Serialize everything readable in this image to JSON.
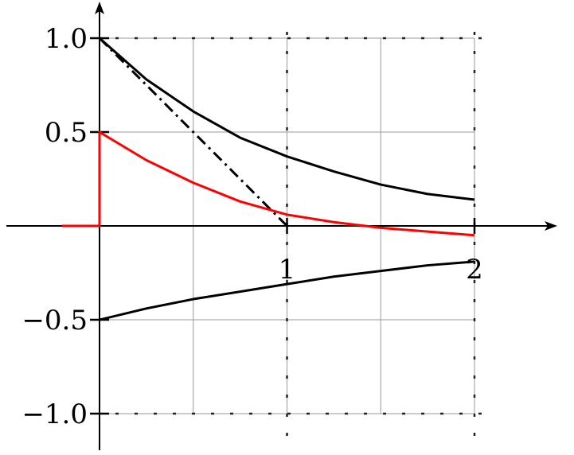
{
  "chart_data": {
    "type": "line",
    "title": "",
    "xlabel": "",
    "ylabel": "",
    "xlim": [
      -0.5,
      2.4
    ],
    "ylim": [
      -1.2,
      1.2
    ],
    "grid": true,
    "x_ticks": [
      {
        "value": 1,
        "label": "1"
      },
      {
        "value": 2,
        "label": "2"
      }
    ],
    "y_ticks": [
      {
        "value": 1.0,
        "label": "1.0"
      },
      {
        "value": 0.5,
        "label": "0.5"
      },
      {
        "value": -0.5,
        "label": "−0.5"
      },
      {
        "value": -1.0,
        "label": "−1.0"
      }
    ],
    "series": [
      {
        "name": "upper-envelope",
        "color": "#000000",
        "style": "solid",
        "x": [
          0,
          0.25,
          0.5,
          0.75,
          1.0,
          1.25,
          1.5,
          1.75,
          2.0
        ],
        "y": [
          1.0,
          0.78,
          0.61,
          0.47,
          0.37,
          0.29,
          0.22,
          0.17,
          0.14
        ]
      },
      {
        "name": "lower-envelope",
        "color": "#000000",
        "style": "solid",
        "x": [
          0,
          0.25,
          0.5,
          0.75,
          1.0,
          1.25,
          1.5,
          1.75,
          2.0
        ],
        "y": [
          -0.5,
          -0.44,
          -0.39,
          -0.35,
          -0.31,
          -0.27,
          -0.24,
          -0.21,
          -0.19
        ]
      },
      {
        "name": "tangent-line",
        "color": "#000000",
        "style": "dashdot",
        "x": [
          0,
          1.0
        ],
        "y": [
          1.0,
          0.0
        ]
      },
      {
        "name": "red-response",
        "color": "#ff0000",
        "style": "solid",
        "x": [
          -0.2,
          0,
          0,
          0.25,
          0.5,
          0.75,
          1.0,
          1.25,
          1.5,
          1.75,
          2.0
        ],
        "y": [
          0,
          0,
          0.5,
          0.35,
          0.23,
          0.13,
          0.06,
          0.02,
          -0.01,
          -0.03,
          -0.05
        ]
      }
    ]
  }
}
